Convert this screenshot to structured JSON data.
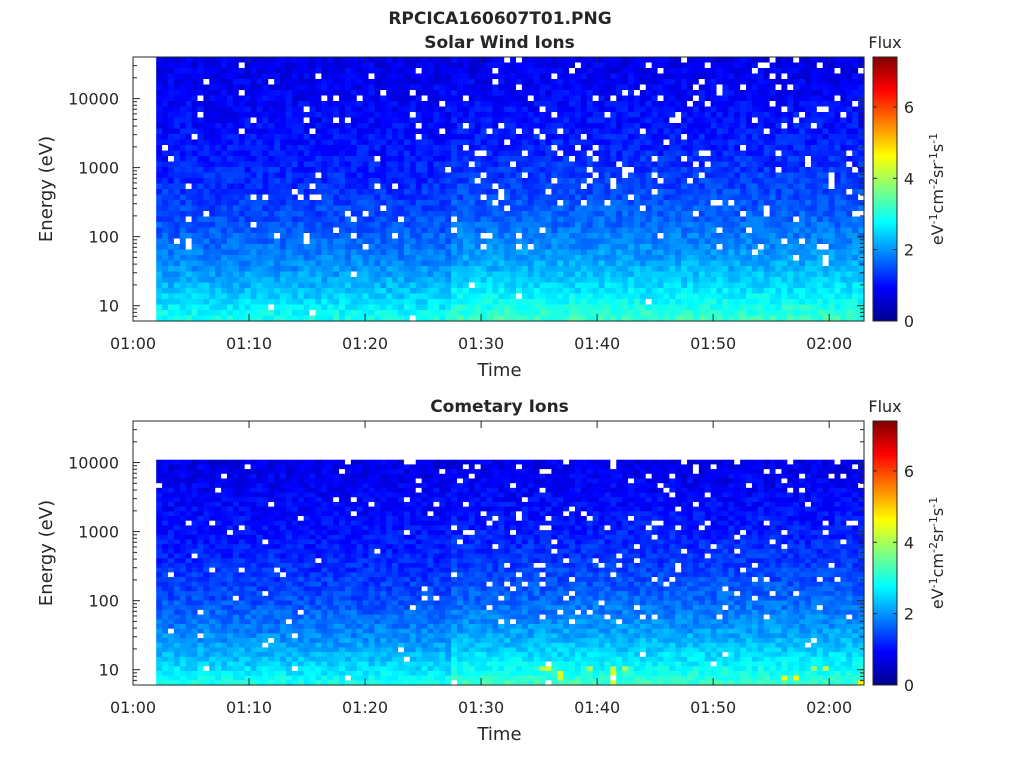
{
  "figure_title": "RPCICA160607T01.PNG",
  "chart_data": [
    {
      "type": "heatmap",
      "title": "Solar Wind Ions",
      "xlabel": "Time",
      "ylabel": "Energy (eV)",
      "x_ticks": [
        "01:00",
        "01:10",
        "01:20",
        "01:30",
        "01:40",
        "01:50",
        "02:00"
      ],
      "x_range": [
        "01:00",
        "02:03"
      ],
      "data_x_range": [
        "01:02",
        "02:03"
      ],
      "y_scale": "log",
      "y_ticks": [
        "10",
        "100",
        "1000",
        "10000"
      ],
      "y_range": [
        6,
        40000
      ],
      "data_y_range": [
        6,
        40000
      ],
      "colorbar": {
        "label": "Flux",
        "unit": "eV-1cm-2sr-1s-1",
        "ticks": [
          "0",
          "2",
          "4",
          "6"
        ],
        "range": [
          0,
          7.4
        ],
        "colormap": "jet"
      }
    },
    {
      "type": "heatmap",
      "title": "Cometary Ions",
      "xlabel": "Time",
      "ylabel": "Energy (eV)",
      "x_ticks": [
        "01:00",
        "01:10",
        "01:20",
        "01:30",
        "01:40",
        "01:50",
        "02:00"
      ],
      "x_range": [
        "01:00",
        "02:03"
      ],
      "data_x_range": [
        "01:02",
        "02:03"
      ],
      "y_scale": "log",
      "y_ticks": [
        "10",
        "100",
        "1000",
        "10000"
      ],
      "y_range": [
        6,
        40000
      ],
      "data_y_range": [
        6,
        11000
      ],
      "colorbar": {
        "label": "Flux",
        "unit": "eV-1cm-2sr-1s-1",
        "ticks": [
          "0",
          "2",
          "4",
          "6"
        ],
        "range": [
          0,
          7.4
        ],
        "colormap": "jet"
      }
    }
  ]
}
